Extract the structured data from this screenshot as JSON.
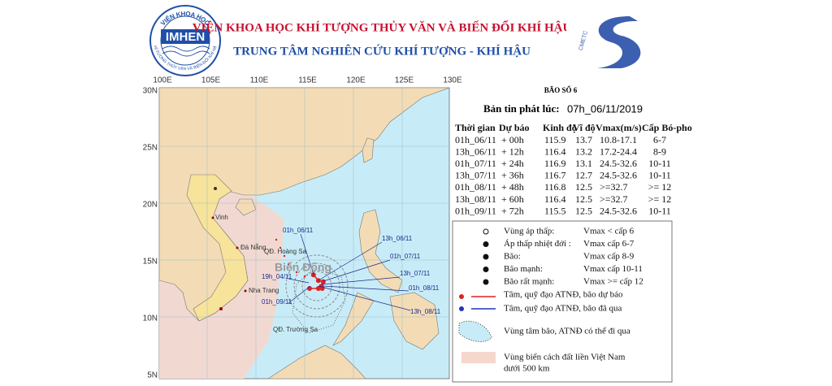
{
  "header": {
    "logo_arc": "VIỆN KHOA HỌC",
    "logo_text": "IMHEN",
    "logo_side": "KHÍ TƯỢNG THỦY VĂN VÀ BIẾN ĐỔI KHÍ HẬU",
    "institute": "VIỆN KHOA HỌC KHÍ TƯỢNG THỦY VĂN VÀ BIẾN ĐỔI KHÍ HẬU",
    "center": "TRUNG TÂM NGHIÊN CỨU KHÍ TƯỢNG - KHÍ HẬU",
    "cmetc": "CMETC"
  },
  "map": {
    "lon_labels": [
      "100E",
      "105E",
      "110E",
      "115E",
      "120E",
      "125E",
      "130E"
    ],
    "lat_labels": [
      "30N",
      "25N",
      "20N",
      "15N",
      "10N",
      "5N"
    ],
    "sea_name": "Biển Đông",
    "places": [
      "Vinh",
      "Đà Nẵng",
      "QĐ. Hoàng Sa",
      "Nha Trang",
      "QĐ. Trường Sa"
    ],
    "track_labels": [
      "01h_06/11",
      "13h_06/11",
      "01h_07/11",
      "13h_07/11",
      "01h_08/11",
      "13h_08/11",
      "19h_04/11",
      "01h_09/11"
    ]
  },
  "bulletin": {
    "title": "BÃO SỐ 6",
    "issued_label": "Bản tin phát lúc:",
    "issued_time": "07h_06/11/2019",
    "columns": [
      "Thời gian",
      "Dự báo",
      "Kinh độ",
      "Vĩ độ",
      "Vmax(m/s)",
      "Cấp Bó-pho"
    ],
    "rows": [
      [
        "01h_06/11",
        "+ 00h",
        "115.9",
        "13.7",
        "10.8-17.1",
        "6-7"
      ],
      [
        "13h_06/11",
        "+ 12h",
        "116.4",
        "13.2",
        "17.2-24.4",
        "8-9"
      ],
      [
        "01h_07/11",
        "+ 24h",
        "116.9",
        "13.1",
        "24.5-32.6",
        "10-11"
      ],
      [
        "13h_07/11",
        "+ 36h",
        "116.7",
        "12.7",
        "24.5-32.6",
        "10-11"
      ],
      [
        "01h_08/11",
        "+ 48h",
        "116.8",
        "12.5",
        ">=32.7",
        ">= 12"
      ],
      [
        "13h_08/11",
        "+ 60h",
        "116.4",
        "12.5",
        ">=32.7",
        ">= 12"
      ],
      [
        "01h_09/11",
        "+ 72h",
        "115.5",
        "12.5",
        "24.5-32.6",
        "10-11"
      ]
    ]
  },
  "legend": {
    "intensity": [
      {
        "label": "Vùng áp thấp:",
        "note": "Vmax < cấp 6"
      },
      {
        "label": "Áp thấp nhiệt đới :",
        "note": "Vmax cấp 6-7"
      },
      {
        "label": "Bão:",
        "note": "Vmax cấp 8-9"
      },
      {
        "label": "Bão mạnh:",
        "note": "Vmax cấp 10-11"
      },
      {
        "label": "Bão rất mạnh:",
        "note": "Vmax >= cấp 12"
      }
    ],
    "forecast_track": "Tâm, quỹ đạo ATNĐ, bão dự báo",
    "past_track": "Tâm, quỹ đạo ATNĐ, bão đã qua",
    "cone": "Vùng tâm bão, ATNĐ có thể đi qua",
    "zone": [
      "Vùng biển cách đất liền Việt Nam",
      "dưới 500 km"
    ]
  }
}
